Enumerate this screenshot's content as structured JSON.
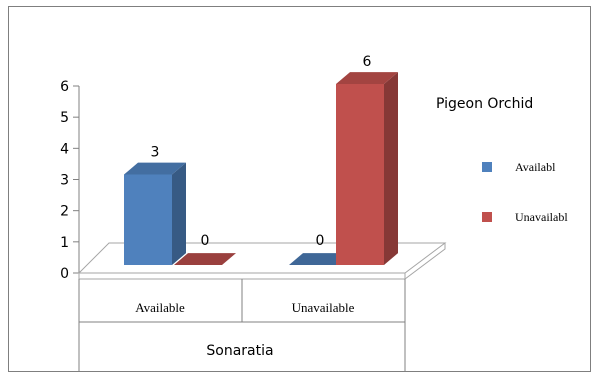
{
  "chart_data": {
    "type": "bar",
    "title": "Pigeon Orchid",
    "group_label": "Sonaratia",
    "categories": [
      "Available",
      "Unavailable"
    ],
    "series": [
      {
        "name": "Availabl",
        "color": "#4f81bd",
        "values": [
          3,
          0
        ]
      },
      {
        "name": "Unavailabl",
        "color": "#c0504d",
        "values": [
          0,
          6
        ]
      }
    ],
    "data_labels": [
      [
        "3",
        "0"
      ],
      [
        "0",
        "6"
      ]
    ],
    "ylim": [
      0,
      6
    ],
    "yticks": [
      "0",
      "1",
      "2",
      "3",
      "4",
      "5",
      "6"
    ],
    "three_d": true,
    "grid": false,
    "legend_position": "right"
  }
}
